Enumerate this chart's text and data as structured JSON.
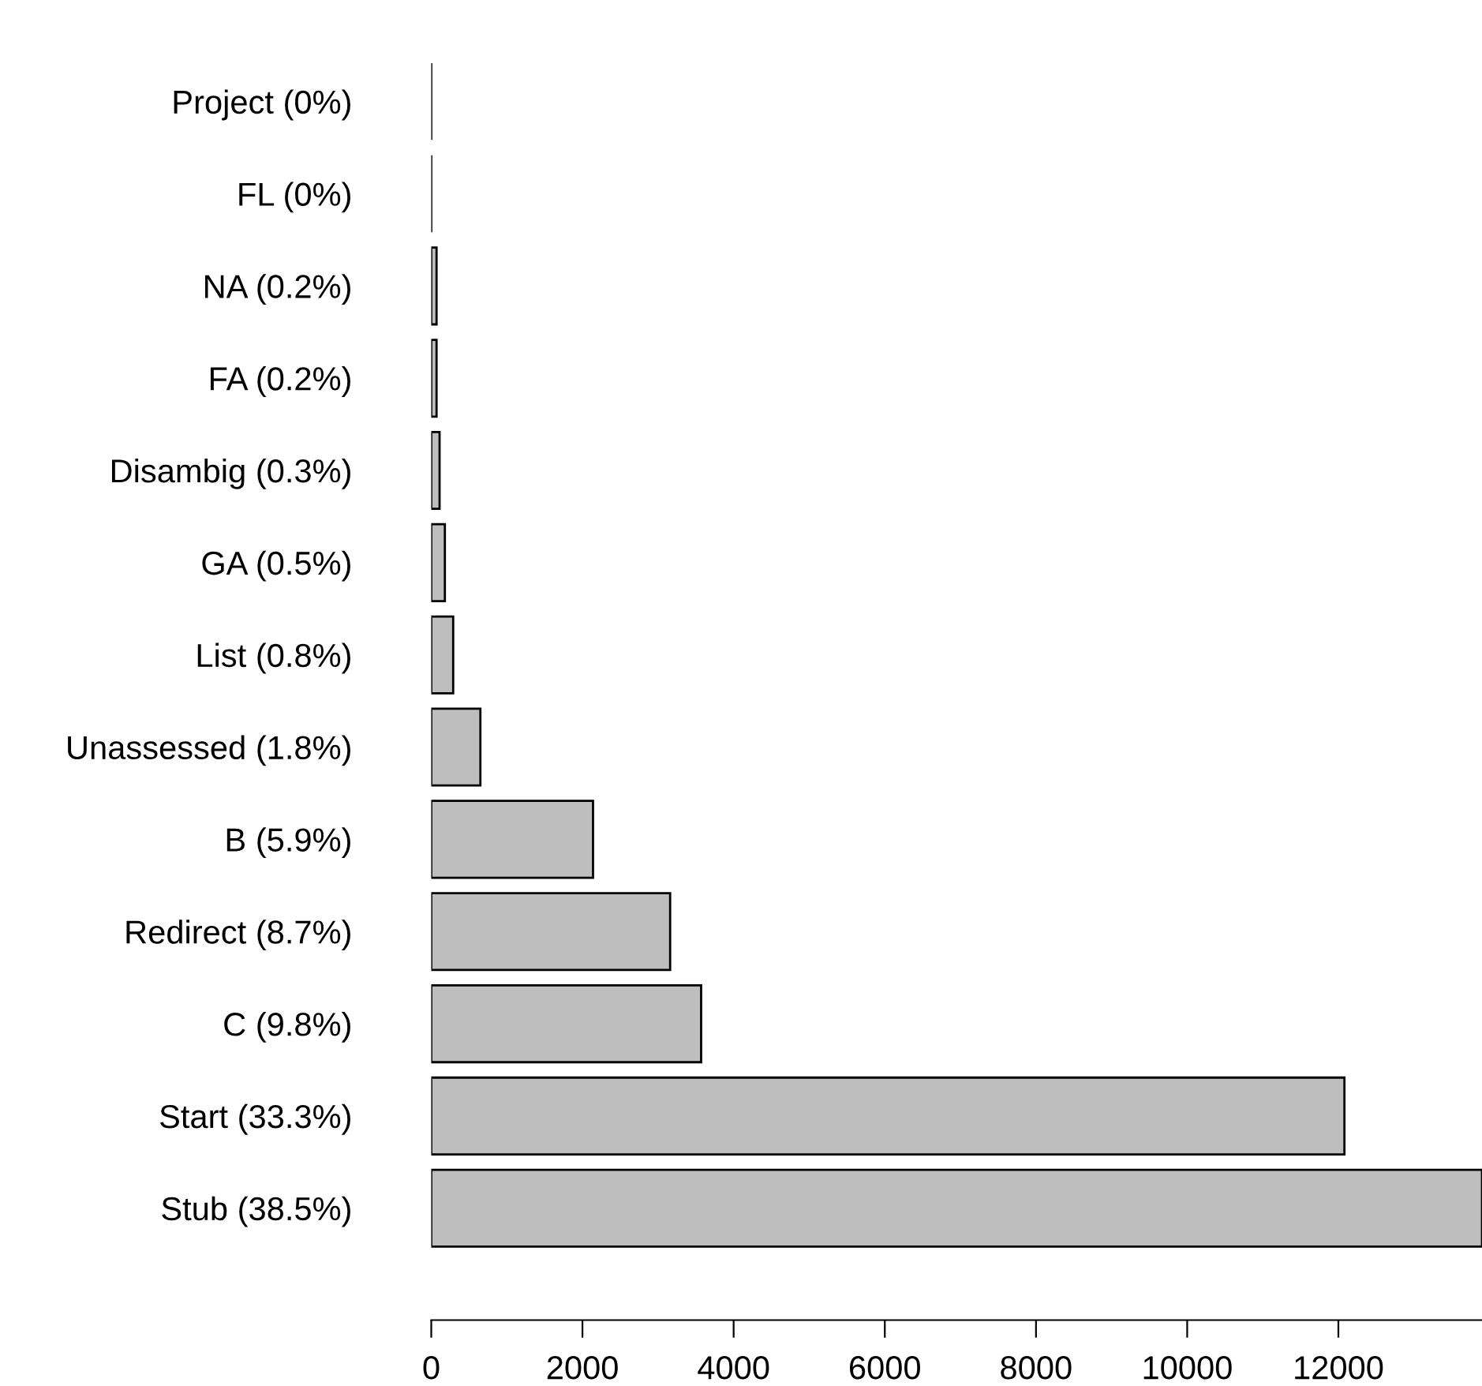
{
  "chart_data": {
    "type": "bar",
    "orientation": "horizontal",
    "categories": [
      "Project (0%)",
      "FL (0%)",
      "NA (0.2%)",
      "FA (0.2%)",
      "Disambig (0.3%)",
      "GA (0.5%)",
      "List (0.8%)",
      "Unassessed (1.8%)",
      "B (5.9%)",
      "Redirect (8.7%)",
      "C (9.8%)",
      "Start (33.3%)",
      "Stub (38.5%)"
    ],
    "values": [
      0,
      0,
      70,
      70,
      110,
      180,
      290,
      650,
      2140,
      3160,
      3570,
      12080,
      13900
    ],
    "colors": [
      "#000000",
      "#000000",
      "#bebebe",
      "#bebebe",
      "#bebebe",
      "#bebebe",
      "#bebebe",
      "#bebebe",
      "#bebebe",
      "#bebebe",
      "#bebebe",
      "#bebebe",
      "#bebebe"
    ],
    "xlim": [
      0,
      13900
    ],
    "xticks": [
      0,
      2000,
      4000,
      6000,
      8000,
      10000,
      12000
    ],
    "grid": false,
    "legend": false
  }
}
